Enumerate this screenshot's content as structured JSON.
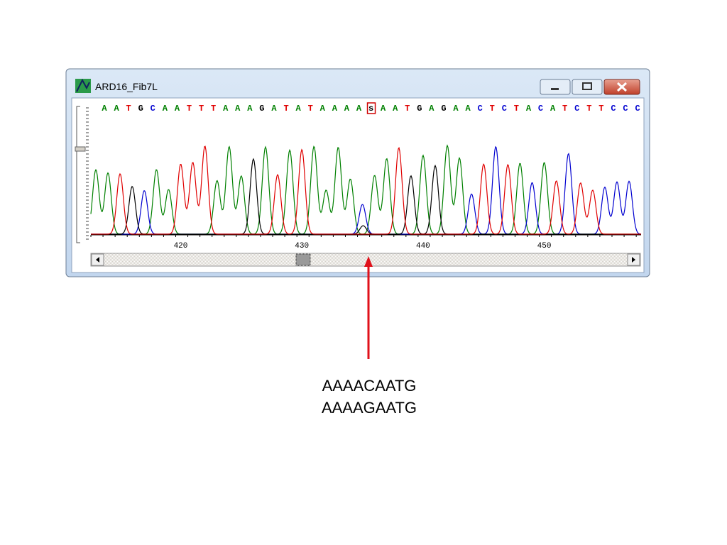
{
  "window": {
    "title": "ARD16_Fib7L",
    "sequence": [
      "A",
      "A",
      "T",
      "G",
      "C",
      "A",
      "A",
      "T",
      "T",
      "T",
      "A",
      "A",
      "A",
      "G",
      "A",
      "T",
      "A",
      "T",
      "A",
      "A",
      "A",
      "A",
      "s",
      "A",
      "A",
      "T",
      "G",
      "A",
      "G",
      "A",
      "A",
      "C",
      "T",
      "C",
      "T",
      "A",
      "C",
      "A",
      "T",
      "C",
      "T",
      "T",
      "C",
      "C",
      "C"
    ],
    "ambiguous_color": "#d00000",
    "base_colors": {
      "A": "#008000",
      "C": "#0000d0",
      "G": "#000000",
      "T": "#e00000",
      "s": "#000000"
    },
    "ruler": [
      420,
      430,
      440,
      450
    ]
  },
  "caption": [
    "AAAACAATG",
    "AAAAGAATG"
  ]
}
